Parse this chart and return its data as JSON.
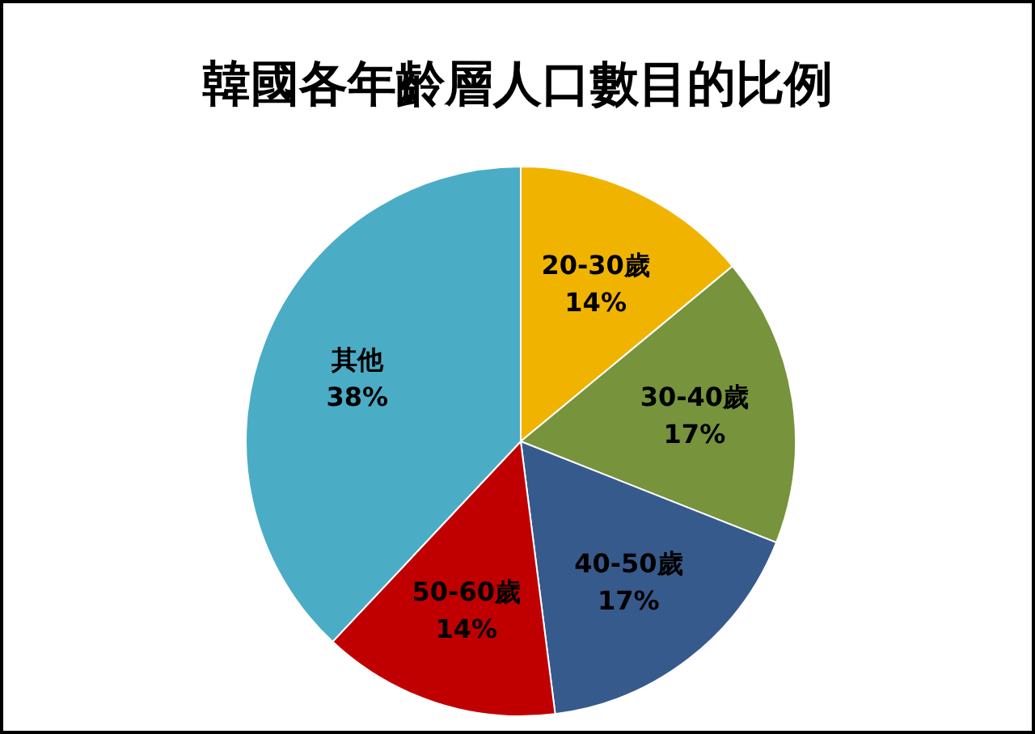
{
  "chart_data": {
    "type": "pie",
    "title": "韓國各年齡層人口數目的比例",
    "categories": [
      "20-30歲",
      "30-40歲",
      "40-50歲",
      "50-60歲",
      "其他"
    ],
    "values": [
      14,
      17,
      17,
      14,
      38
    ],
    "colors": [
      "#f0b400",
      "#77933c",
      "#375a8c",
      "#c00000",
      "#4bacc6"
    ],
    "value_labels": [
      "14%",
      "17%",
      "17%",
      "14%",
      "38%"
    ],
    "legend": false
  }
}
